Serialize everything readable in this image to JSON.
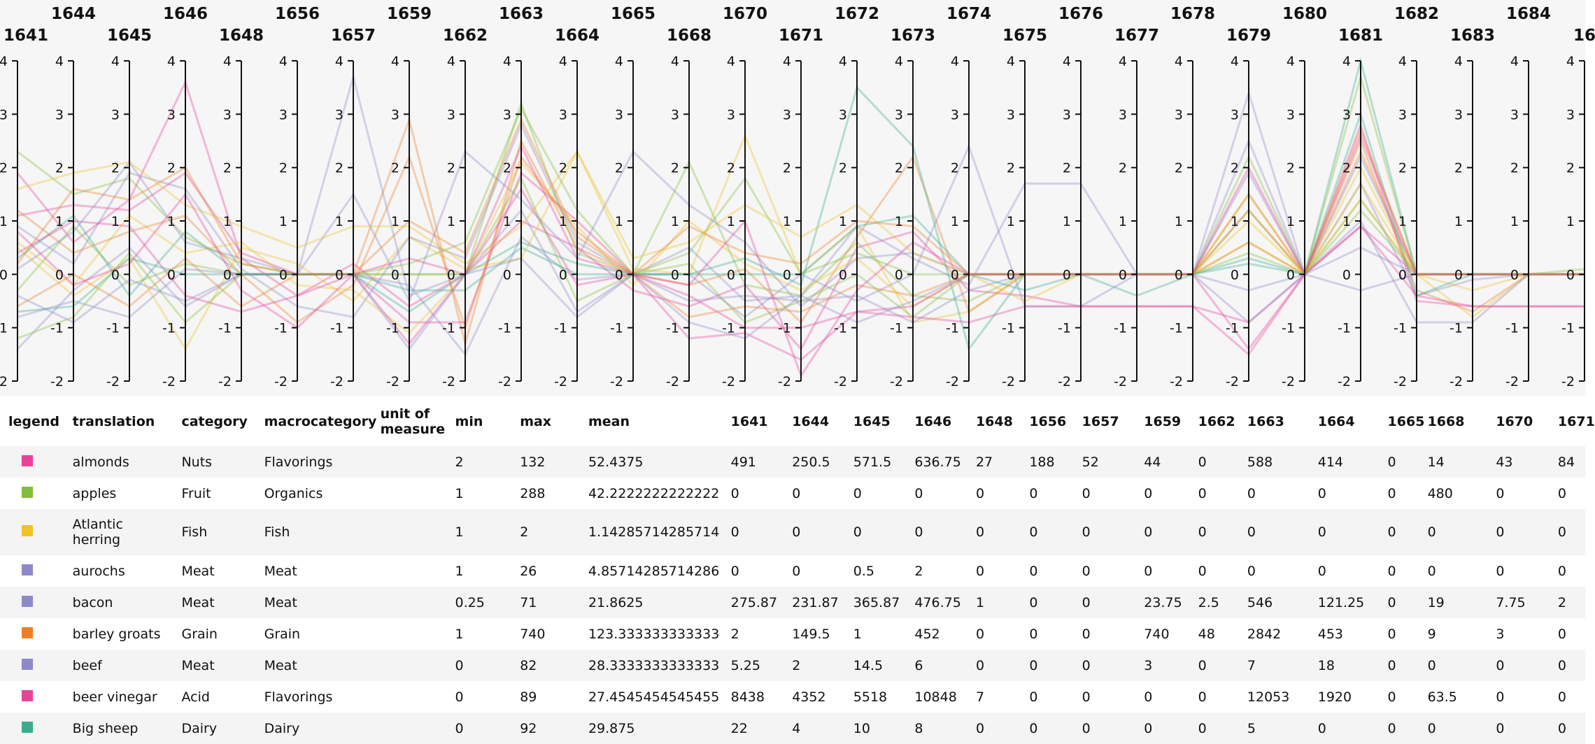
{
  "chart_data": {
    "type": "parallel-coordinates",
    "axes": [
      "1641",
      "1644",
      "1645",
      "1646",
      "1648",
      "1656",
      "1657",
      "1659",
      "1662",
      "1663",
      "1664",
      "1665",
      "1668",
      "1670",
      "1671",
      "1672",
      "1673",
      "1674",
      "1675",
      "1676",
      "1677",
      "1678",
      "1679",
      "1680",
      "1681",
      "1682",
      "1683",
      "1684",
      "16"
    ],
    "y_ticks": [
      4,
      3,
      2,
      1,
      0,
      -1,
      -2
    ],
    "ylim": [
      -2,
      4
    ],
    "series": [
      {
        "name": "almonds",
        "color": "#e8439a",
        "values": [
          1.9,
          0.6,
          1.4,
          3.6,
          0.3,
          -0.4,
          0.2,
          -0.6,
          0.0,
          1.0,
          0.5,
          -0.3,
          -0.6,
          -0.2,
          -1.4,
          0.5,
          0.8,
          -0.3,
          -0.4,
          -0.6,
          -0.6,
          -0.6,
          -0.9,
          0.0,
          0.9,
          -0.4,
          -0.6,
          -0.6,
          -0.6
        ]
      },
      {
        "name": "apples",
        "color": "#84bd3a",
        "values": [
          -0.3,
          0.9,
          -0.2,
          0.2,
          0.0,
          0.0,
          0.0,
          0.0,
          0.0,
          3.2,
          0.4,
          0.0,
          2.1,
          -0.2,
          -0.4,
          0.6,
          -0.4,
          -0.5,
          0.0,
          0.0,
          0.0,
          0.0,
          1.2,
          0.0,
          1.4,
          0.0,
          0.0,
          0.0,
          0.1
        ]
      },
      {
        "name": "Atlantic herring",
        "color": "#efc329",
        "values": [
          0.5,
          -0.4,
          0.3,
          -1.4,
          0.5,
          0.2,
          -0.5,
          0.7,
          0.1,
          0.3,
          2.3,
          0.1,
          0.0,
          2.6,
          0.0,
          0.9,
          -0.9,
          -0.7,
          0.0,
          0.0,
          0.0,
          0.0,
          1.5,
          0.0,
          2.0,
          0.0,
          -0.8,
          0.0,
          0.0
        ]
      },
      {
        "name": "aurochs",
        "color": "#8e89c9",
        "values": [
          -1.4,
          -0.3,
          0.5,
          -0.6,
          0.0,
          0.0,
          3.7,
          -0.4,
          0.0,
          1.2,
          -0.7,
          0.0,
          0.0,
          -0.8,
          0.0,
          -0.5,
          0.0,
          2.4,
          -0.6,
          -0.6,
          0.0,
          0.0,
          3.4,
          0.0,
          1.0,
          -0.9,
          -0.9,
          0.0,
          0.0
        ]
      },
      {
        "name": "bacon",
        "color": "#8e89c9",
        "values": [
          0.9,
          0.2,
          1.9,
          1.6,
          0.1,
          -0.6,
          -0.8,
          0.7,
          0.3,
          2.8,
          0.6,
          0.0,
          0.5,
          -0.5,
          -0.4,
          0.9,
          0.3,
          -0.2,
          1.7,
          1.7,
          0.0,
          0.0,
          2.5,
          0.0,
          1.7,
          -0.4,
          -0.1,
          0.0,
          0.0
        ]
      },
      {
        "name": "barley groats",
        "color": "#ee7e28",
        "values": [
          -0.6,
          0.0,
          -0.6,
          0.3,
          -0.6,
          0.0,
          0.0,
          2.9,
          -1.3,
          2.5,
          0.5,
          0.0,
          -0.2,
          0.1,
          -0.9,
          0.7,
          2.2,
          -0.7,
          0.0,
          0.0,
          0.0,
          0.0,
          1.2,
          0.0,
          2.5,
          -0.3,
          -0.7,
          0.0,
          0.0
        ]
      },
      {
        "name": "beef",
        "color": "#8e89c9",
        "values": [
          -0.4,
          -0.9,
          -0.1,
          -0.5,
          0.0,
          0.0,
          0.0,
          -0.2,
          -1.5,
          0.7,
          -0.1,
          0.0,
          -0.5,
          -0.4,
          -0.5,
          -0.4,
          -0.9,
          -0.3,
          0.0,
          0.0,
          0.0,
          0.0,
          -0.3,
          0.0,
          0.5,
          0.0,
          0.0,
          0.0,
          0.0
        ]
      },
      {
        "name": "beer vinegar",
        "color": "#e8439a",
        "values": [
          1.1,
          1.3,
          1.2,
          1.9,
          0.4,
          0.0,
          0.0,
          -0.9,
          -0.9,
          1.9,
          1.0,
          0.0,
          -0.4,
          -1.0,
          -1.0,
          -0.7,
          -0.8,
          -0.9,
          -0.6,
          -0.6,
          -0.6,
          -0.6,
          -1.5,
          0.0,
          2.8,
          -0.5,
          -0.6,
          -0.6,
          -0.6
        ]
      },
      {
        "name": "Big sheep",
        "color": "#3aad8f",
        "values": [
          0.3,
          1.1,
          -0.4,
          0.8,
          0.0,
          0.0,
          0.0,
          -0.3,
          -0.3,
          0.5,
          0.0,
          0.0,
          0.0,
          0.3,
          -0.2,
          3.5,
          2.4,
          -1.4,
          0.0,
          0.0,
          -0.4,
          0.0,
          0.2,
          0.0,
          4.0,
          0.0,
          0.0,
          0.0,
          0.0
        ]
      },
      {
        "name": "",
        "color": "#84bd3a",
        "values": [
          2.3,
          1.5,
          1.8,
          0.7,
          0.2,
          0.0,
          0.0,
          0.2,
          0.6,
          3.1,
          1.2,
          0.0,
          0.4,
          1.8,
          0.0,
          0.4,
          0.0,
          0.0,
          0.0,
          0.0,
          0.0,
          0.0,
          2.2,
          0.0,
          3.7,
          0.0,
          0.0,
          0.0,
          0.0
        ]
      },
      {
        "name": "",
        "color": "#efc329",
        "values": [
          0.6,
          -0.2,
          1.1,
          0.4,
          0.6,
          -0.2,
          -0.3,
          -1.1,
          0.0,
          2.1,
          0.9,
          -0.2,
          1.0,
          0.2,
          -0.3,
          0.3,
          -0.6,
          0.0,
          -0.5,
          0.0,
          0.0,
          0.0,
          0.6,
          0.0,
          1.4,
          0.0,
          -0.3,
          0.0,
          0.0
        ]
      },
      {
        "name": "",
        "color": "#ee7e28",
        "values": [
          1.2,
          0.4,
          0.8,
          1.1,
          0.0,
          -0.9,
          -0.2,
          2.2,
          -1.0,
          2.2,
          0.8,
          0.0,
          -0.8,
          -0.6,
          -0.7,
          -0.2,
          -0.4,
          0.0,
          0.0,
          0.0,
          0.0,
          0.0,
          0.6,
          0.0,
          2.3,
          0.0,
          0.0,
          0.0,
          0.0
        ]
      },
      {
        "name": "",
        "color": "#e8439a",
        "values": [
          0.4,
          1.0,
          0.9,
          -0.4,
          -0.7,
          -0.4,
          0.0,
          -1.3,
          0.0,
          1.6,
          -0.2,
          0.0,
          -1.2,
          -1.1,
          -1.6,
          -0.7,
          -0.6,
          0.0,
          0.0,
          0.0,
          0.0,
          0.0,
          -1.4,
          0.0,
          0.9,
          0.0,
          0.0,
          0.0,
          0.0
        ]
      },
      {
        "name": "",
        "color": "#3aad8f",
        "values": [
          -0.7,
          -0.6,
          0.3,
          0.0,
          0.0,
          0.0,
          0.0,
          -0.7,
          0.0,
          0.6,
          0.2,
          0.0,
          0.0,
          0.0,
          0.0,
          0.9,
          1.1,
          0.0,
          -0.3,
          0.0,
          0.0,
          0.0,
          0.3,
          0.0,
          3.0,
          -0.4,
          0.0,
          0.0,
          0.0
        ]
      },
      {
        "name": "",
        "color": "#8e89c9",
        "values": [
          0.1,
          0.8,
          2.1,
          0.6,
          0.3,
          0.0,
          1.5,
          -0.5,
          2.3,
          1.4,
          0.3,
          2.3,
          1.3,
          0.6,
          -0.6,
          0.3,
          0.4,
          0.0,
          0.0,
          0.0,
          0.0,
          0.0,
          1.9,
          0.0,
          2.2,
          0.0,
          0.0,
          0.0,
          0.0
        ]
      },
      {
        "name": "",
        "color": "#efc329",
        "values": [
          1.6,
          1.9,
          2.1,
          1.3,
          0.9,
          0.5,
          0.9,
          0.9,
          0.2,
          0.9,
          2.3,
          0.3,
          0.6,
          1.3,
          0.7,
          1.3,
          0.4,
          0.0,
          0.0,
          0.0,
          0.0,
          0.0,
          1.0,
          0.0,
          1.7,
          0.0,
          0.0,
          0.0,
          0.0
        ]
      },
      {
        "name": "",
        "color": "#84bd3a",
        "values": [
          -1.2,
          -0.8,
          0.4,
          -0.9,
          0.0,
          0.0,
          0.0,
          0.0,
          0.0,
          1.8,
          -0.5,
          0.0,
          0.2,
          -0.9,
          -0.5,
          0.0,
          -0.8,
          0.0,
          0.0,
          0.0,
          0.0,
          0.0,
          0.4,
          0.0,
          1.2,
          0.0,
          0.0,
          0.0,
          0.0
        ]
      },
      {
        "name": "",
        "color": "#e8439a",
        "values": [
          0.8,
          -0.2,
          0.2,
          1.5,
          -0.3,
          -1.0,
          0.0,
          0.3,
          0.0,
          2.4,
          0.3,
          0.0,
          -0.2,
          1.0,
          -1.9,
          -0.3,
          0.6,
          0.0,
          0.0,
          0.0,
          0.0,
          0.0,
          2.0,
          0.0,
          2.6,
          0.0,
          0.0,
          0.0,
          0.0
        ]
      },
      {
        "name": "",
        "color": "#8e89c9",
        "values": [
          -0.8,
          -0.5,
          -0.8,
          0.1,
          0.0,
          0.0,
          0.0,
          -1.4,
          0.0,
          0.3,
          -0.8,
          0.0,
          -0.9,
          -1.2,
          -0.4,
          -0.9,
          -0.5,
          0.0,
          0.0,
          0.0,
          0.0,
          0.0,
          -0.9,
          0.0,
          -0.3,
          0.0,
          0.0,
          0.0,
          0.0
        ]
      },
      {
        "name": "",
        "color": "#ee7e28",
        "values": [
          0.2,
          1.6,
          1.4,
          2.0,
          0.2,
          0.0,
          0.0,
          1.0,
          0.4,
          2.9,
          0.7,
          0.0,
          0.9,
          0.4,
          0.2,
          1.0,
          0.9,
          0.0,
          0.0,
          0.0,
          0.0,
          0.0,
          1.5,
          0.0,
          2.7,
          0.0,
          0.0,
          0.0,
          0.0
        ]
      }
    ]
  },
  "table": {
    "headers": [
      "legend",
      "translation",
      "category",
      "macrocategory",
      "unit of measure",
      "min",
      "max",
      "mean",
      "1641",
      "1644",
      "1645",
      "1646",
      "1648",
      "1656",
      "1657",
      "1659",
      "1662",
      "1663",
      "1664",
      "1665",
      "1668",
      "1670",
      "1671"
    ],
    "rows": [
      {
        "color": "#e8439a",
        "cells": [
          "almonds",
          "Nuts",
          "Flavorings",
          "",
          "2",
          "132",
          "52.4375",
          "491",
          "250.5",
          "571.5",
          "636.75",
          "27",
          "188",
          "52",
          "44",
          "0",
          "588",
          "414",
          "0",
          "14",
          "43",
          "84"
        ]
      },
      {
        "color": "#84bd3a",
        "cells": [
          "apples",
          "Fruit",
          "Organics",
          "",
          "1",
          "288",
          "42.2222222222222",
          "0",
          "0",
          "0",
          "0",
          "0",
          "0",
          "0",
          "0",
          "0",
          "0",
          "0",
          "0",
          "480",
          "0",
          "0"
        ]
      },
      {
        "color": "#efc329",
        "cells": [
          "Atlantic herring",
          "Fish",
          "Fish",
          "",
          "1",
          "2",
          "1.14285714285714",
          "0",
          "0",
          "0",
          "0",
          "0",
          "0",
          "0",
          "0",
          "0",
          "0",
          "0",
          "0",
          "0",
          "0",
          "0"
        ]
      },
      {
        "color": "#8e89c9",
        "cells": [
          "aurochs",
          "Meat",
          "Meat",
          "",
          "1",
          "26",
          "4.85714285714286",
          "0",
          "0",
          "0.5",
          "2",
          "0",
          "0",
          "0",
          "0",
          "0",
          "0",
          "0",
          "0",
          "0",
          "0",
          "0"
        ]
      },
      {
        "color": "#8e89c9",
        "cells": [
          "bacon",
          "Meat",
          "Meat",
          "",
          "0.25",
          "71",
          "21.8625",
          "275.87",
          "231.87",
          "365.87",
          "476.75",
          "1",
          "0",
          "0",
          "23.75",
          "2.5",
          "546",
          "121.25",
          "0",
          "19",
          "7.75",
          "2"
        ]
      },
      {
        "color": "#ee7e28",
        "cells": [
          "barley groats",
          "Grain",
          "Grain",
          "",
          "1",
          "740",
          "123.333333333333",
          "2",
          "149.5",
          "1",
          "452",
          "0",
          "0",
          "0",
          "740",
          "48",
          "2842",
          "453",
          "0",
          "9",
          "3",
          "0"
        ]
      },
      {
        "color": "#8e89c9",
        "cells": [
          "beef",
          "Meat",
          "Meat",
          "",
          "0",
          "82",
          "28.3333333333333",
          "5.25",
          "2",
          "14.5",
          "6",
          "0",
          "0",
          "0",
          "3",
          "0",
          "7",
          "18",
          "0",
          "0",
          "0",
          "0"
        ]
      },
      {
        "color": "#e8439a",
        "cells": [
          "beer vinegar",
          "Acid",
          "Flavorings",
          "",
          "0",
          "89",
          "27.4545454545455",
          "8438",
          "4352",
          "5518",
          "10848",
          "7",
          "0",
          "0",
          "0",
          "0",
          "12053",
          "1920",
          "0",
          "63.5",
          "0",
          "0"
        ]
      },
      {
        "color": "#3aad8f",
        "cells": [
          "Big sheep",
          "Dairy",
          "Dairy",
          "",
          "0",
          "92",
          "29.875",
          "22",
          "4",
          "10",
          "8",
          "0",
          "0",
          "0",
          "0",
          "0",
          "5",
          "0",
          "0",
          "0",
          "0",
          "0"
        ]
      }
    ]
  }
}
